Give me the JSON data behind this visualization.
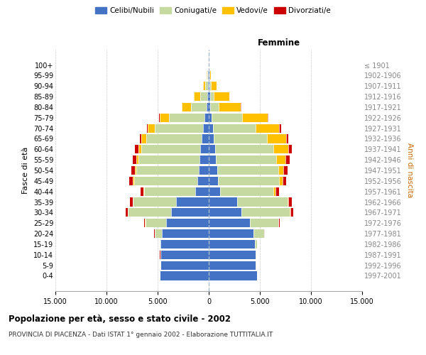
{
  "age_groups": [
    "0-4",
    "5-9",
    "10-14",
    "15-19",
    "20-24",
    "25-29",
    "30-34",
    "35-39",
    "40-44",
    "45-49",
    "50-54",
    "55-59",
    "60-64",
    "65-69",
    "70-74",
    "75-79",
    "80-84",
    "85-89",
    "90-94",
    "95-99",
    "100+"
  ],
  "birth_years": [
    "1997-2001",
    "1992-1996",
    "1987-1991",
    "1982-1986",
    "1977-1981",
    "1972-1976",
    "1967-1971",
    "1962-1966",
    "1957-1961",
    "1952-1956",
    "1947-1951",
    "1942-1946",
    "1937-1941",
    "1932-1936",
    "1927-1931",
    "1922-1926",
    "1917-1921",
    "1912-1916",
    "1907-1911",
    "1902-1906",
    "≤ 1901"
  ],
  "male_celibe": [
    4800,
    4700,
    4700,
    4700,
    4600,
    4200,
    3700,
    3200,
    1300,
    1100,
    1000,
    900,
    800,
    700,
    550,
    400,
    220,
    150,
    80,
    50,
    20
  ],
  "male_coniugato": [
    10,
    20,
    50,
    100,
    700,
    2000,
    4200,
    4200,
    5000,
    6200,
    6100,
    6000,
    5800,
    5400,
    4700,
    3500,
    1500,
    700,
    250,
    80,
    30
  ],
  "male_vedovo": [
    0,
    1,
    2,
    5,
    10,
    20,
    30,
    50,
    80,
    100,
    150,
    200,
    300,
    500,
    700,
    900,
    900,
    600,
    200,
    50,
    10
  ],
  "male_divorziato": [
    0,
    1,
    5,
    20,
    50,
    100,
    200,
    250,
    300,
    350,
    350,
    350,
    300,
    150,
    100,
    50,
    20,
    15,
    10,
    5,
    2
  ],
  "female_celibe": [
    4700,
    4600,
    4600,
    4500,
    4400,
    4000,
    3200,
    2800,
    1100,
    900,
    800,
    700,
    600,
    500,
    400,
    250,
    150,
    120,
    80,
    40,
    10
  ],
  "female_coniugata": [
    10,
    20,
    60,
    200,
    1000,
    2800,
    4700,
    4900,
    5200,
    6000,
    6000,
    5900,
    5700,
    5200,
    4200,
    3000,
    800,
    400,
    150,
    60,
    20
  ],
  "female_vedova": [
    0,
    1,
    2,
    5,
    15,
    30,
    60,
    100,
    200,
    300,
    500,
    900,
    1500,
    1900,
    2300,
    2500,
    2200,
    1500,
    500,
    100,
    20
  ],
  "female_divorziata": [
    0,
    1,
    5,
    20,
    60,
    130,
    280,
    350,
    350,
    380,
    400,
    400,
    350,
    200,
    150,
    80,
    30,
    20,
    10,
    5,
    2
  ],
  "colors": {
    "celibe": "#4472c4",
    "coniugato": "#c6d9a0",
    "vedovo": "#ffc000",
    "divorziato": "#cc0000"
  },
  "xlim": 15000,
  "title": "Popolazione per età, sesso e stato civile - 2002",
  "subtitle": "PROVINCIA DI PIACENZA - Dati ISTAT 1° gennaio 2002 - Elaborazione TUTTITALIA.IT",
  "ylabel_left": "Fasce di età",
  "ylabel_right": "Anni di nascita",
  "xlabel_right": "Femmine",
  "legend_labels": [
    "Celibi/Nubili",
    "Coniugati/e",
    "Vedovi/e",
    "Divorziati/e"
  ],
  "xtick_vals": [
    -15000,
    -10000,
    -5000,
    0,
    5000,
    10000,
    15000
  ],
  "xtick_labels": [
    "15.000",
    "10.000",
    "5.000",
    "0",
    "5.000",
    "10.000",
    "15.000"
  ],
  "background_color": "#ffffff",
  "grid_color": "#cccccc"
}
